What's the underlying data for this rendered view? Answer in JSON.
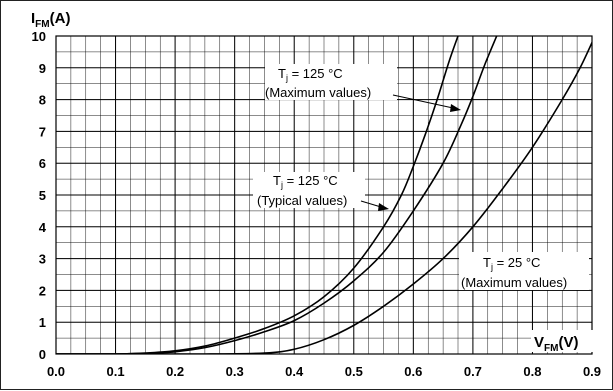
{
  "chart_data": {
    "type": "line",
    "x_axis": {
      "name": "V",
      "subscript": "FM",
      "unit": "(V)",
      "range": [
        0.0,
        0.9
      ],
      "tick_labels": [
        "0.0",
        "0.1",
        "0.2",
        "0.3",
        "0.4",
        "0.5",
        "0.6",
        "0.7",
        "0.8",
        "0.9"
      ]
    },
    "y_axis": {
      "name": "I",
      "subscript": "FM",
      "unit": "(A)",
      "range": [
        0,
        10
      ],
      "tick_labels": [
        "0",
        "1",
        "2",
        "3",
        "4",
        "5",
        "6",
        "7",
        "8",
        "9",
        "10"
      ]
    },
    "grid": {
      "major": true,
      "minor_x_step": 0.025,
      "minor_y_step": 0.5
    },
    "series": [
      {
        "id": "typ125",
        "x": [
          0.0,
          0.1,
          0.15,
          0.2,
          0.25,
          0.3,
          0.35,
          0.4,
          0.45,
          0.5,
          0.55,
          0.58,
          0.6,
          0.62,
          0.64,
          0.66,
          0.675
        ],
        "y": [
          0.0,
          0.0,
          0.03,
          0.1,
          0.25,
          0.5,
          0.8,
          1.2,
          1.8,
          2.7,
          4.0,
          5.0,
          5.9,
          6.9,
          8.0,
          9.2,
          10.0
        ]
      },
      {
        "id": "max125",
        "x": [
          0.0,
          0.1,
          0.15,
          0.2,
          0.25,
          0.3,
          0.35,
          0.4,
          0.45,
          0.5,
          0.55,
          0.6,
          0.65,
          0.68,
          0.7,
          0.72,
          0.74
        ],
        "y": [
          0.0,
          0.0,
          0.02,
          0.07,
          0.2,
          0.42,
          0.7,
          1.05,
          1.6,
          2.3,
          3.2,
          4.5,
          6.0,
          7.2,
          8.1,
          9.1,
          10.0
        ]
      },
      {
        "id": "max25",
        "x": [
          0.0,
          0.25,
          0.35,
          0.4,
          0.45,
          0.5,
          0.55,
          0.6,
          0.65,
          0.7,
          0.75,
          0.8,
          0.85,
          0.88,
          0.905
        ],
        "y": [
          0.0,
          0.0,
          0.03,
          0.15,
          0.45,
          0.9,
          1.5,
          2.2,
          3.0,
          4.0,
          5.2,
          6.5,
          8.0,
          9.0,
          10.0
        ]
      }
    ],
    "annotations": [
      {
        "line1_prefix": "T",
        "line1_sub": "j",
        "line1_rest": " = 125 °C",
        "line2": "(Maximum values)",
        "series": "max125"
      },
      {
        "line1_prefix": "T",
        "line1_sub": "j",
        "line1_rest": " = 125 °C",
        "line2": "(Typical values)",
        "series": "typ125"
      },
      {
        "line1_prefix": "T",
        "line1_sub": "j",
        "line1_rest": " = 25 °C",
        "line2": "(Maximum values)",
        "series": "max25"
      }
    ]
  }
}
